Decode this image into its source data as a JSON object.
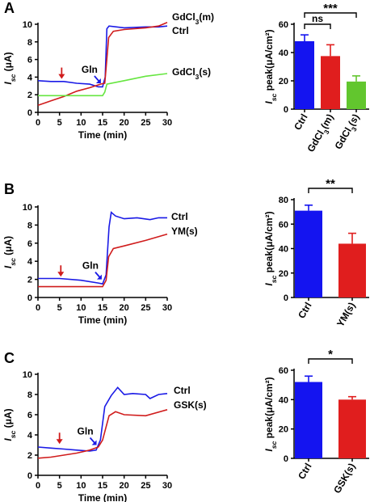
{
  "chart_data": [
    {
      "panel": "A",
      "type": "line",
      "xlabel": "Time (min)",
      "ylabel": "Isc (μA)",
      "xlim": [
        0,
        30
      ],
      "ylim": [
        0,
        10
      ],
      "xticks": [
        0,
        5,
        10,
        15,
        20,
        25,
        30
      ],
      "yticks": [
        0,
        2,
        4,
        6,
        8,
        10
      ],
      "series": [
        {
          "name": "GdCl3(m)",
          "color": "#1a1ae6",
          "points": [
            [
              0,
              3.6
            ],
            [
              3,
              3.5
            ],
            [
              6,
              3.5
            ],
            [
              9,
              3.3
            ],
            [
              12,
              3.2
            ],
            [
              14,
              2.9
            ],
            [
              15,
              2.9
            ],
            [
              15.6,
              4
            ],
            [
              16,
              9.5
            ],
            [
              16.5,
              9.8
            ],
            [
              20,
              9.6
            ],
            [
              25,
              9.7
            ],
            [
              28,
              9.7
            ],
            [
              30,
              9.8
            ]
          ]
        },
        {
          "name": "Ctrl",
          "color": "#d01c1c",
          "points": [
            [
              0,
              0.8
            ],
            [
              3,
              1.3
            ],
            [
              6,
              1.8
            ],
            [
              9,
              2.4
            ],
            [
              12,
              2.8
            ],
            [
              14.5,
              3.2
            ],
            [
              15.5,
              3.3
            ],
            [
              15.8,
              5
            ],
            [
              16.4,
              8.5
            ],
            [
              17.5,
              9.2
            ],
            [
              20,
              9.4
            ],
            [
              25,
              9.6
            ],
            [
              28,
              9.8
            ],
            [
              29,
              10
            ],
            [
              30,
              10.2
            ]
          ]
        },
        {
          "name": "GdCl3(s)",
          "color": "#66e640",
          "points": [
            [
              0,
              1.9
            ],
            [
              5,
              1.9
            ],
            [
              10,
              1.9
            ],
            [
              15,
              1.9
            ],
            [
              15.5,
              2.3
            ],
            [
              16,
              3.2
            ],
            [
              20,
              3.6
            ],
            [
              25,
              4.1
            ],
            [
              30,
              4.4
            ]
          ]
        }
      ],
      "annotations": [
        {
          "text": "Gln",
          "x": 14.6,
          "y": 3.3,
          "arrow_color": "#1a1ae6"
        },
        {
          "text": "",
          "x": 5.5,
          "y": 3.8,
          "arrow_color": "#d01c1c"
        }
      ]
    },
    {
      "panel": "A",
      "type": "bar",
      "ylabel": "Isc peak(μA/cm²)",
      "ylim": [
        0,
        60
      ],
      "yticks": [
        0,
        20,
        40,
        60
      ],
      "categories": [
        "Ctrl",
        "GdCl3(m)",
        "GdCl3(s)"
      ],
      "values": [
        48,
        37.5,
        19.5
      ],
      "errors": [
        4.5,
        8,
        4
      ],
      "colors": [
        "#1414f0",
        "#e01e1e",
        "#62c62e"
      ],
      "significance": [
        {
          "from": 0,
          "to": 1,
          "label": "ns"
        },
        {
          "from": 0,
          "to": 2,
          "label": "***"
        }
      ]
    },
    {
      "panel": "B",
      "type": "line",
      "xlabel": "Time (min)",
      "ylabel": "Isc (μA)",
      "xlim": [
        0,
        30
      ],
      "ylim": [
        0,
        10
      ],
      "xticks": [
        0,
        5,
        10,
        15,
        20,
        25,
        30
      ],
      "yticks": [
        0,
        2,
        4,
        6,
        8,
        10
      ],
      "series": [
        {
          "name": "Ctrl",
          "color": "#1a1ae6",
          "points": [
            [
              0,
              2.1
            ],
            [
              5,
              2.1
            ],
            [
              10,
              1.9
            ],
            [
              14,
              1.6
            ],
            [
              15,
              1.5
            ],
            [
              15.8,
              2.5
            ],
            [
              16.5,
              7.8
            ],
            [
              17,
              9.4
            ],
            [
              18,
              9.0
            ],
            [
              20,
              8.7
            ],
            [
              23,
              8.8
            ],
            [
              26,
              8.6
            ],
            [
              28,
              8.8
            ],
            [
              30,
              8.8
            ]
          ]
        },
        {
          "name": "YM(s)",
          "color": "#d01c1c",
          "points": [
            [
              0,
              1.2
            ],
            [
              5,
              1.2
            ],
            [
              10,
              1.2
            ],
            [
              15,
              1.2
            ],
            [
              15.8,
              1.9
            ],
            [
              16.4,
              4.5
            ],
            [
              17.5,
              5.4
            ],
            [
              20,
              5.7
            ],
            [
              25,
              6.3
            ],
            [
              30,
              7.0
            ]
          ]
        }
      ],
      "annotations": [
        {
          "text": "Gln",
          "x": 14.8,
          "y": 2.0,
          "arrow_color": "#1a1ae6"
        },
        {
          "text": "",
          "x": 5.3,
          "y": 2.3,
          "arrow_color": "#d01c1c"
        }
      ]
    },
    {
      "panel": "B",
      "type": "bar",
      "ylabel": "Isc peak(μA/cm²)",
      "ylim": [
        0,
        80
      ],
      "yticks": [
        0,
        20,
        40,
        60,
        80
      ],
      "categories": [
        "Ctrl",
        "YM(s)"
      ],
      "values": [
        71,
        44
      ],
      "errors": [
        4.5,
        8.5
      ],
      "colors": [
        "#1414f0",
        "#e01e1e"
      ],
      "significance": [
        {
          "from": 0,
          "to": 1,
          "label": "**"
        }
      ]
    },
    {
      "panel": "C",
      "type": "line",
      "xlabel": "Time (min)",
      "ylabel": "Isc (μA)",
      "xlim": [
        0,
        30
      ],
      "ylim": [
        0,
        10
      ],
      "xticks": [
        0,
        5,
        10,
        15,
        20,
        25,
        30
      ],
      "yticks": [
        0,
        2,
        4,
        6,
        8,
        10
      ],
      "series": [
        {
          "name": "Ctrl",
          "color": "#1a1ae6",
          "points": [
            [
              0,
              2.8
            ],
            [
              3,
              2.7
            ],
            [
              6,
              2.6
            ],
            [
              9,
              2.5
            ],
            [
              12,
              2.4
            ],
            [
              13.5,
              2.5
            ],
            [
              14.5,
              3.5
            ],
            [
              15.5,
              6.8
            ],
            [
              17,
              7.9
            ],
            [
              18.5,
              8.7
            ],
            [
              20,
              8.0
            ],
            [
              22,
              8.1
            ],
            [
              25,
              8.0
            ],
            [
              26,
              7.6
            ],
            [
              28,
              8.0
            ],
            [
              30,
              8.1
            ]
          ]
        },
        {
          "name": "GSK(s)",
          "color": "#d01c1c",
          "points": [
            [
              0,
              1.7
            ],
            [
              3,
              1.8
            ],
            [
              6,
              2.0
            ],
            [
              9,
              2.2
            ],
            [
              12,
              2.5
            ],
            [
              14,
              2.8
            ],
            [
              15,
              3.5
            ],
            [
              16.5,
              5.9
            ],
            [
              18,
              6.3
            ],
            [
              20,
              6.0
            ],
            [
              25,
              5.9
            ],
            [
              30,
              6.5
            ]
          ]
        }
      ],
      "annotations": [
        {
          "text": "Gln",
          "x": 13.6,
          "y": 3.0,
          "arrow_color": "#1a1ae6"
        },
        {
          "text": "",
          "x": 5.0,
          "y": 3.1,
          "arrow_color": "#d01c1c"
        }
      ]
    },
    {
      "panel": "C",
      "type": "bar",
      "ylabel": "Isc peak(μA/cm²)",
      "ylim": [
        0,
        60
      ],
      "yticks": [
        0,
        20,
        40,
        60
      ],
      "categories": [
        "Ctrl",
        "GSK(s)"
      ],
      "values": [
        52,
        40
      ],
      "errors": [
        4,
        2
      ],
      "colors": [
        "#1414f0",
        "#e01e1e"
      ],
      "significance": [
        {
          "from": 0,
          "to": 1,
          "label": "*"
        }
      ]
    }
  ]
}
